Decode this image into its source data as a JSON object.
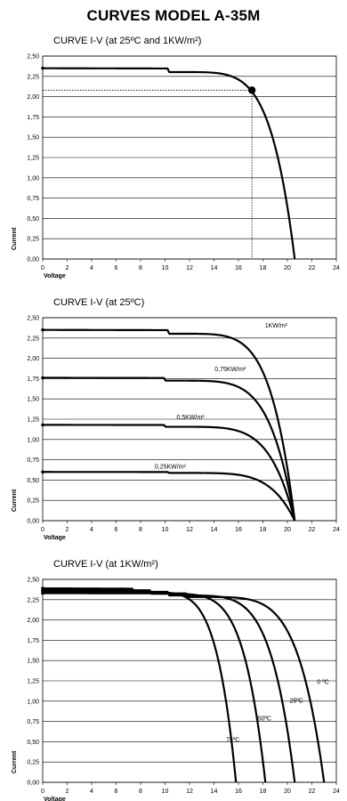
{
  "page": {
    "title": "CURVES MODEL A-35M"
  },
  "chart_data": [
    {
      "type": "line",
      "title": "CURVE I-V (at 25ºC and 1KW/m²)",
      "xlabel": "Voltage",
      "ylabel": "Current",
      "xlim": [
        0,
        24
      ],
      "ylim": [
        0,
        2.5
      ],
      "x_ticks": [
        "0",
        "2",
        "4",
        "6",
        "8",
        "10",
        "12",
        "14",
        "16",
        "18",
        "20",
        "22",
        "24"
      ],
      "y_ticks": [
        "0,00",
        "0,25",
        "0,50",
        "0,75",
        "1,00",
        "1,25",
        "1,50",
        "1,75",
        "2,00",
        "2,25",
        "2,50"
      ],
      "grid": "horizontal",
      "series": [
        {
          "name": "",
          "isc": 2.35,
          "voc": 20.6,
          "knee": 17.0,
          "imp": 2.2
        }
      ],
      "marker": {
        "x": 17.1,
        "y": 2.08
      }
    },
    {
      "type": "line",
      "title": "CURVE I-V (at 25ºC)",
      "xlabel": "Voltage",
      "ylabel": "Current",
      "xlim": [
        0,
        24
      ],
      "ylim": [
        0,
        2.5
      ],
      "x_ticks": [
        "0",
        "2",
        "4",
        "6",
        "8",
        "10",
        "12",
        "14",
        "16",
        "18",
        "20",
        "22",
        "24"
      ],
      "y_ticks": [
        "0,00",
        "0,25",
        "0,50",
        "0,75",
        "1,00",
        "1,25",
        "1,50",
        "1,75",
        "2,00",
        "2,25",
        "2,50"
      ],
      "grid": "horizontal",
      "series": [
        {
          "name": "1KW/m²",
          "isc": 2.35,
          "voc": 20.6,
          "knee": 17.0,
          "imp": 2.2,
          "label_at": [
            20.0,
            2.38
          ]
        },
        {
          "name": "0,75KW/m²",
          "isc": 1.76,
          "voc": 20.6,
          "knee": 16.5,
          "imp": 1.65,
          "label_at": [
            16.6,
            1.84
          ]
        },
        {
          "name": "0,5KW/m²",
          "isc": 1.18,
          "voc": 20.6,
          "knee": 16.5,
          "imp": 1.1,
          "label_at": [
            13.2,
            1.25
          ]
        },
        {
          "name": "0,25KW/m²",
          "isc": 0.6,
          "voc": 20.6,
          "knee": 17.0,
          "imp": 0.56,
          "label_at": [
            11.7,
            0.64
          ]
        }
      ]
    },
    {
      "type": "line",
      "title": "CURVE I-V (at 1KW/m²)",
      "xlabel": "Voltage",
      "ylabel": "Current",
      "xlim": [
        0,
        24
      ],
      "ylim": [
        0,
        2.5
      ],
      "x_ticks": [
        "0",
        "2",
        "4",
        "6",
        "8",
        "10",
        "12",
        "14",
        "16",
        "18",
        "20",
        "22",
        "24"
      ],
      "y_ticks": [
        "0,00",
        "0,25",
        "0,50",
        "0,75",
        "1,00",
        "1,25",
        "1,50",
        "1,75",
        "2,00",
        "2,25",
        "2,50"
      ],
      "grid": "horizontal",
      "series": [
        {
          "name": "0 ºC",
          "isc": 2.33,
          "voc": 23.0,
          "knee": 19.5,
          "imp": 2.2,
          "label_at": [
            23.4,
            1.21
          ]
        },
        {
          "name": "25ºC",
          "isc": 2.35,
          "voc": 20.6,
          "knee": 17.0,
          "imp": 2.2,
          "label_at": [
            21.3,
            0.98
          ]
        },
        {
          "name": "50ºC",
          "isc": 2.37,
          "voc": 18.2,
          "knee": 14.6,
          "imp": 2.18,
          "label_at": [
            18.7,
            0.76
          ]
        },
        {
          "name": "75ºC",
          "isc": 2.39,
          "voc": 15.8,
          "knee": 12.2,
          "imp": 2.16,
          "label_at": [
            16.1,
            0.5
          ]
        }
      ]
    }
  ]
}
